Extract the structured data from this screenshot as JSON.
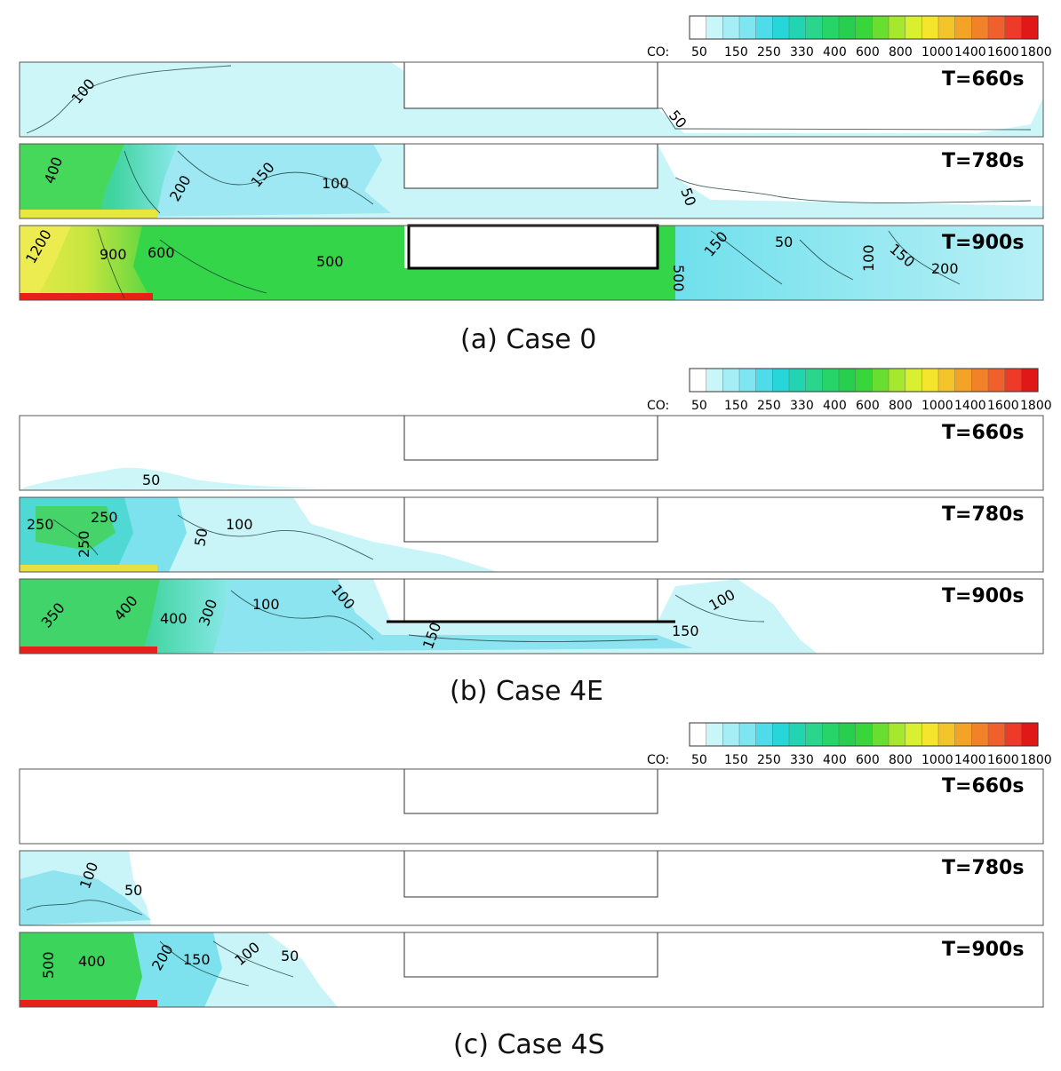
{
  "colorbar": {
    "variable_label": "CO:",
    "tick_labels": [
      "50",
      "150",
      "250",
      "330",
      "400",
      "600",
      "800",
      "1000",
      "1400",
      "1600",
      "1800"
    ],
    "colors": [
      "#ffffff",
      "#c9f6f9",
      "#a6eef5",
      "#7de6f0",
      "#4fdcea",
      "#27d6d8",
      "#22d4b2",
      "#2ad68c",
      "#27d468",
      "#26d04e",
      "#38d63a",
      "#6ade30",
      "#a5e82e",
      "#d9f030",
      "#f5e52c",
      "#f4c52a",
      "#f3a426",
      "#f2822a",
      "#f0602c",
      "#ee3a28",
      "#e01818"
    ]
  },
  "cases": [
    {
      "caption": "(a) Case 0",
      "panels": [
        {
          "time_label": "T=660s",
          "labels": [
            "100",
            "50"
          ]
        },
        {
          "time_label": "T=780s",
          "labels": [
            "400",
            "200",
            "150",
            "100",
            "50"
          ]
        },
        {
          "time_label": "T=900s",
          "labels": [
            "1200",
            "900",
            "600",
            "500",
            "500",
            "150",
            "50",
            "100",
            "150",
            "200"
          ]
        }
      ]
    },
    {
      "caption": "(b) Case 4E",
      "panels": [
        {
          "time_label": "T=660s",
          "labels": [
            "50"
          ]
        },
        {
          "time_label": "T=780s",
          "labels": [
            "250",
            "250",
            "250",
            "50",
            "100"
          ]
        },
        {
          "time_label": "T=900s",
          "labels": [
            "350",
            "400",
            "400",
            "300",
            "100",
            "100",
            "150",
            "150",
            "100"
          ]
        }
      ]
    },
    {
      "caption": "(c) Case 4S",
      "panels": [
        {
          "time_label": "T=660s",
          "labels": []
        },
        {
          "time_label": "T=780s",
          "labels": [
            "100",
            "50"
          ]
        },
        {
          "time_label": "T=900s",
          "labels": [
            "500",
            "400",
            "200",
            "150",
            "100",
            "50"
          ]
        }
      ]
    }
  ]
}
